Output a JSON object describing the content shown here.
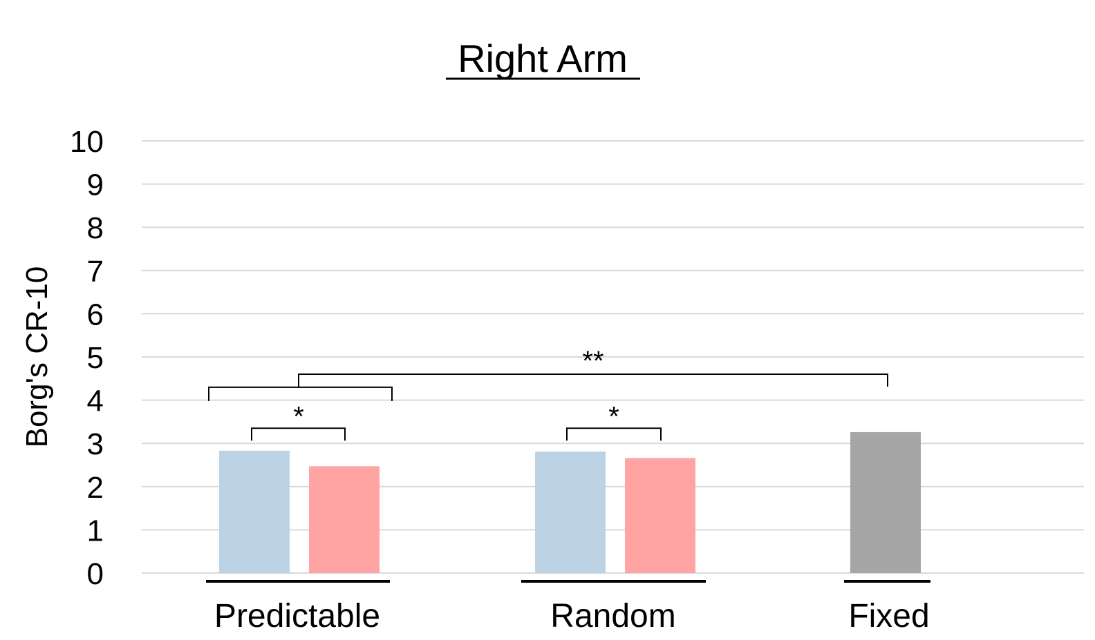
{
  "chart_data": {
    "type": "bar",
    "title": "Right Arm",
    "ylabel": "Borg's CR-10",
    "xlabel": "",
    "ylim": [
      0,
      10
    ],
    "yticks": [
      "0",
      "1",
      "2",
      "3",
      "4",
      "5",
      "6",
      "7",
      "8",
      "9",
      "10"
    ],
    "grid": true,
    "categories": [
      "Predictable",
      "Random",
      "Fixed"
    ],
    "bars": [
      {
        "category": "Predictable",
        "value": 2.83,
        "color": "#bcd2e5"
      },
      {
        "category": "Predictable",
        "value": 2.47,
        "color": "#ffa3a3"
      },
      {
        "category": "Random",
        "value": 2.81,
        "color": "#bcd2e5"
      },
      {
        "category": "Random",
        "value": 2.66,
        "color": "#ffa3a3"
      },
      {
        "category": "Fixed",
        "value": 3.26,
        "color": "#a6a6a6"
      }
    ],
    "annotations": [
      {
        "label": "*",
        "between": "Predictable bars",
        "level": 3.35
      },
      {
        "label": "*",
        "between": "Random bars",
        "level": 3.35
      },
      {
        "label": "**",
        "between": "Predictable vs Fixed",
        "level": 4.6
      }
    ]
  }
}
